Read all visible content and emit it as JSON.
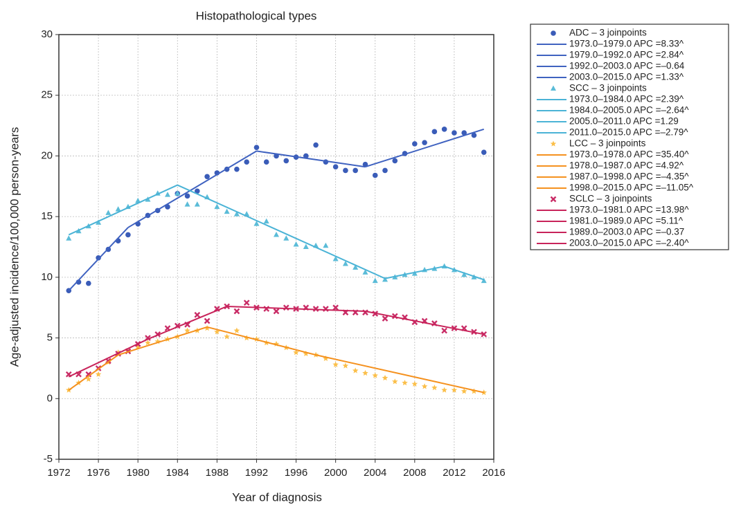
{
  "chart_data": {
    "type": "joinpoint",
    "title": "Histopathological types",
    "x_label": "Year of diagnosis",
    "y_label": "Age-adjusted incidence/100,000 person-years",
    "xlim": [
      1972,
      2016
    ],
    "xticks": [
      1972,
      1976,
      1980,
      1984,
      1988,
      1992,
      1996,
      2000,
      2004,
      2008,
      2012,
      2016
    ],
    "ylim": [
      -5,
      30
    ],
    "yticks": [
      -5,
      0,
      5,
      10,
      15,
      20,
      25,
      30
    ],
    "grid": true,
    "legend": "outside-right",
    "x": [
      1973,
      1974,
      1975,
      1976,
      1977,
      1978,
      1979,
      1980,
      1981,
      1982,
      1983,
      1984,
      1985,
      1986,
      1987,
      1988,
      1989,
      1990,
      1991,
      1992,
      1993,
      1994,
      1995,
      1996,
      1997,
      1998,
      1999,
      2000,
      2001,
      2002,
      2003,
      2004,
      2005,
      2006,
      2007,
      2008,
      2009,
      2010,
      2011,
      2012,
      2013,
      2014,
      2015
    ],
    "series": [
      {
        "name": "ADC – 3 joinpoints",
        "marker": "circle",
        "color": "#3a5cb8",
        "line_color": "#3f62c0",
        "values": [
          8.9,
          9.6,
          9.5,
          11.6,
          12.3,
          13.0,
          13.5,
          14.4,
          15.1,
          15.5,
          15.8,
          16.9,
          16.7,
          17.1,
          18.3,
          18.6,
          18.9,
          18.9,
          19.5,
          20.7,
          19.5,
          20.0,
          19.6,
          19.9,
          20.0,
          20.9,
          19.5,
          19.1,
          18.8,
          18.8,
          19.3,
          18.4,
          18.8,
          19.6,
          20.2,
          21.0,
          21.1,
          22.0,
          22.2,
          21.9,
          21.9,
          21.7,
          20.3
        ],
        "segments": [
          {
            "name": "1973.0–1979.0 APC =8.33^",
            "x": [
              1973,
              1979
            ],
            "values": [
              8.9,
              14.1
            ]
          },
          {
            "name": "1979.0–1992.0 APC =2.84^",
            "x": [
              1979,
              1992
            ],
            "values": [
              14.1,
              20.4
            ]
          },
          {
            "name": "1992.0–2003.0 APC =–0.64",
            "x": [
              1992,
              2003
            ],
            "values": [
              20.4,
              19.1
            ]
          },
          {
            "name": "2003.0–2015.0 APC =1.33^",
            "x": [
              2003,
              2015
            ],
            "values": [
              19.1,
              22.2
            ]
          }
        ]
      },
      {
        "name": "SCC – 3 joinpoints",
        "marker": "triangle",
        "color": "#5bbcd8",
        "line_color": "#4ab3d6",
        "values": [
          13.2,
          13.8,
          14.2,
          14.5,
          15.3,
          15.6,
          15.8,
          16.3,
          16.4,
          16.9,
          16.8,
          16.9,
          16.0,
          16.0,
          16.6,
          15.8,
          15.4,
          15.2,
          15.2,
          14.4,
          14.6,
          13.5,
          13.2,
          12.7,
          12.5,
          12.6,
          12.6,
          11.5,
          11.1,
          10.8,
          10.4,
          9.7,
          9.8,
          10.0,
          10.2,
          10.3,
          10.6,
          10.7,
          10.9,
          10.6,
          10.2,
          10.0,
          9.7
        ],
        "segments": [
          {
            "name": "1973.0–1984.0 APC =2.39^",
            "x": [
              1973,
              1984
            ],
            "values": [
              13.5,
              17.6
            ]
          },
          {
            "name": "1984.0–2005.0 APC =–2.64^",
            "x": [
              1984,
              2005
            ],
            "values": [
              17.6,
              9.9
            ]
          },
          {
            "name": "2005.0–2011.0 APC =1.29",
            "x": [
              2005,
              2011
            ],
            "values": [
              9.9,
              10.9
            ]
          },
          {
            "name": "2011.0–2015.0 APC =–2.79^",
            "x": [
              2011,
              2015
            ],
            "values": [
              10.9,
              9.8
            ]
          }
        ]
      },
      {
        "name": "LCC – 3 joinpoints",
        "marker": "star",
        "color": "#fbbf4a",
        "line_color": "#f5911e",
        "values": [
          0.7,
          1.3,
          1.6,
          2.0,
          3.0,
          3.8,
          3.9,
          4.3,
          4.6,
          4.7,
          4.9,
          5.1,
          5.6,
          5.6,
          5.8,
          5.5,
          5.1,
          5.6,
          5.0,
          4.9,
          4.6,
          4.5,
          4.2,
          3.8,
          3.7,
          3.6,
          3.3,
          2.8,
          2.7,
          2.3,
          2.1,
          1.9,
          1.7,
          1.4,
          1.3,
          1.2,
          1.0,
          0.9,
          0.7,
          0.7,
          0.6,
          0.6,
          0.5
        ],
        "segments": [
          {
            "name": "1973.0–1978.0 APC =35.40^",
            "x": [
              1973,
              1978
            ],
            "values": [
              0.7,
              3.6
            ]
          },
          {
            "name": "1978.0–1987.0 APC =4.92^",
            "x": [
              1978,
              1987
            ],
            "values": [
              3.6,
              5.9
            ]
          },
          {
            "name": "1987.0–1998.0 APC =–4.35^",
            "x": [
              1987,
              1998
            ],
            "values": [
              5.9,
              3.6
            ]
          },
          {
            "name": "1998.0–2015.0 APC =–11.05^",
            "x": [
              1998,
              2015
            ],
            "values": [
              3.6,
              0.5
            ]
          }
        ]
      },
      {
        "name": "SCLC – 3 joinpoints",
        "marker": "x",
        "color": "#c92c66",
        "line_color": "#c8235a",
        "values": [
          2.0,
          2.0,
          2.0,
          2.5,
          3.1,
          3.7,
          3.9,
          4.5,
          5.0,
          5.3,
          5.8,
          6.0,
          6.1,
          6.9,
          6.4,
          7.4,
          7.6,
          7.2,
          7.9,
          7.5,
          7.4,
          7.2,
          7.5,
          7.4,
          7.5,
          7.4,
          7.4,
          7.5,
          7.1,
          7.1,
          7.1,
          7.0,
          6.6,
          6.8,
          6.7,
          6.3,
          6.4,
          6.2,
          5.6,
          5.8,
          5.8,
          5.5,
          5.3
        ],
        "segments": [
          {
            "name": "1973.0–1981.0 APC =13.98^",
            "x": [
              1973,
              1981
            ],
            "values": [
              1.8,
              4.9
            ]
          },
          {
            "name": "1981.0–1989.0 APC =5.11^",
            "x": [
              1981,
              1989
            ],
            "values": [
              4.9,
              7.6
            ]
          },
          {
            "name": "1989.0–2003.0 APC =–0.37",
            "x": [
              1989,
              2003
            ],
            "values": [
              7.6,
              7.2
            ]
          },
          {
            "name": "2003.0–2015.0 APC =–2.40^",
            "x": [
              2003,
              2015
            ],
            "values": [
              7.2,
              5.3
            ]
          }
        ]
      }
    ]
  }
}
